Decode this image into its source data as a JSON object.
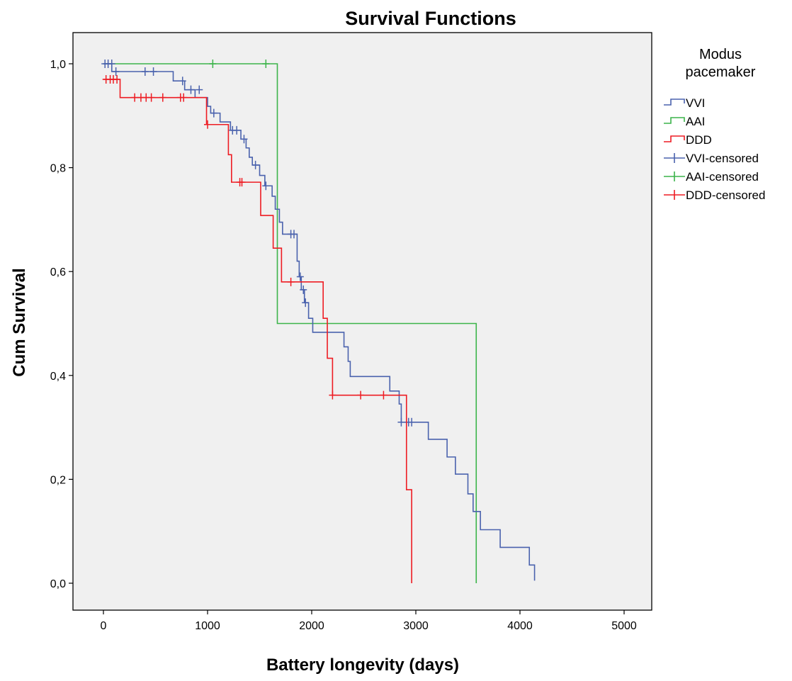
{
  "chart_data": {
    "type": "line",
    "subtype": "kaplan-meier-step",
    "title": "Survival Functions",
    "xlabel": "Battery longevity (days)",
    "ylabel": "Cum Survival",
    "xlim": [
      0,
      5000
    ],
    "ylim": [
      0,
      1
    ],
    "x_ticks": [
      "0",
      "1000",
      "2000",
      "3000",
      "4000",
      "5000"
    ],
    "y_ticks": [
      "0,0",
      "0,2",
      "0,4",
      "0,6",
      "0,8",
      "1,0"
    ],
    "x_tick_values": [
      0,
      1000,
      2000,
      3000,
      4000,
      5000
    ],
    "y_tick_values": [
      0,
      0.2,
      0.4,
      0.6,
      0.8,
      1.0
    ],
    "grid": false,
    "plot_background": "#f0f0f0",
    "legend": {
      "title_lines": [
        "Modus",
        "pacemaker"
      ],
      "position": "right",
      "entries": [
        {
          "label": "VVI",
          "color": "#4a62ad",
          "kind": "step"
        },
        {
          "label": "AAI",
          "color": "#3cb44a",
          "kind": "step"
        },
        {
          "label": "DDD",
          "color": "#ee1c23",
          "kind": "step"
        },
        {
          "label": "VVI-censored",
          "color": "#4a62ad",
          "kind": "cross"
        },
        {
          "label": "AAI-censored",
          "color": "#3cb44a",
          "kind": "cross"
        },
        {
          "label": "DDD-censored",
          "color": "#ee1c23",
          "kind": "cross"
        }
      ]
    },
    "series": [
      {
        "name": "VVI",
        "color": "#4a62ad",
        "steps": [
          [
            0,
            1.0
          ],
          [
            80,
            0.985
          ],
          [
            670,
            0.967
          ],
          [
            780,
            0.95
          ],
          [
            880,
            0.935
          ],
          [
            1000,
            0.918
          ],
          [
            1030,
            0.905
          ],
          [
            1120,
            0.888
          ],
          [
            1220,
            0.872
          ],
          [
            1320,
            0.855
          ],
          [
            1370,
            0.838
          ],
          [
            1400,
            0.82
          ],
          [
            1430,
            0.805
          ],
          [
            1500,
            0.785
          ],
          [
            1550,
            0.765
          ],
          [
            1620,
            0.745
          ],
          [
            1650,
            0.72
          ],
          [
            1690,
            0.695
          ],
          [
            1720,
            0.672
          ],
          [
            1860,
            0.62
          ],
          [
            1880,
            0.59
          ],
          [
            1900,
            0.565
          ],
          [
            1930,
            0.54
          ],
          [
            1970,
            0.51
          ],
          [
            2010,
            0.483
          ],
          [
            2310,
            0.455
          ],
          [
            2350,
            0.427
          ],
          [
            2370,
            0.398
          ],
          [
            2750,
            0.37
          ],
          [
            2840,
            0.345
          ],
          [
            2860,
            0.31
          ],
          [
            3120,
            0.277
          ],
          [
            3300,
            0.243
          ],
          [
            3380,
            0.21
          ],
          [
            3500,
            0.172
          ],
          [
            3550,
            0.138
          ],
          [
            3620,
            0.103
          ],
          [
            3810,
            0.069
          ],
          [
            4090,
            0.035
          ],
          [
            4140,
            0.005
          ]
        ],
        "censored": [
          [
            15,
            1.0
          ],
          [
            45,
            1.0
          ],
          [
            80,
            1.0
          ],
          [
            120,
            0.985
          ],
          [
            400,
            0.985
          ],
          [
            480,
            0.985
          ],
          [
            760,
            0.967
          ],
          [
            840,
            0.95
          ],
          [
            920,
            0.95
          ],
          [
            1060,
            0.905
          ],
          [
            1240,
            0.872
          ],
          [
            1280,
            0.872
          ],
          [
            1350,
            0.855
          ],
          [
            1460,
            0.805
          ],
          [
            1560,
            0.765
          ],
          [
            1800,
            0.672
          ],
          [
            1830,
            0.672
          ],
          [
            1890,
            0.59
          ],
          [
            1920,
            0.565
          ],
          [
            1940,
            0.54
          ],
          [
            2860,
            0.31
          ],
          [
            2930,
            0.31
          ],
          [
            2960,
            0.31
          ]
        ]
      },
      {
        "name": "AAI",
        "color": "#3cb44a",
        "steps": [
          [
            0,
            1.0
          ],
          [
            1670,
            1.0
          ],
          [
            1670,
            0.5
          ],
          [
            3580,
            0.5
          ],
          [
            3580,
            0.0
          ]
        ],
        "censored": [
          [
            1050,
            1.0
          ],
          [
            1560,
            1.0
          ]
        ]
      },
      {
        "name": "DDD",
        "color": "#ee1c23",
        "steps": [
          [
            0,
            0.97
          ],
          [
            160,
            0.935
          ],
          [
            990,
            0.883
          ],
          [
            1200,
            0.825
          ],
          [
            1230,
            0.772
          ],
          [
            1510,
            0.708
          ],
          [
            1630,
            0.645
          ],
          [
            1710,
            0.58
          ],
          [
            2110,
            0.51
          ],
          [
            2150,
            0.433
          ],
          [
            2200,
            0.362
          ],
          [
            2910,
            0.18
          ],
          [
            2960,
            0.0
          ]
        ],
        "censored": [
          [
            25,
            0.97
          ],
          [
            65,
            0.97
          ],
          [
            95,
            0.97
          ],
          [
            130,
            0.97
          ],
          [
            300,
            0.935
          ],
          [
            360,
            0.935
          ],
          [
            410,
            0.935
          ],
          [
            460,
            0.935
          ],
          [
            570,
            0.935
          ],
          [
            740,
            0.935
          ],
          [
            770,
            0.935
          ],
          [
            1000,
            0.883
          ],
          [
            1310,
            0.772
          ],
          [
            1330,
            0.772
          ],
          [
            1800,
            0.58
          ],
          [
            2200,
            0.362
          ],
          [
            2470,
            0.362
          ],
          [
            2690,
            0.362
          ]
        ]
      }
    ]
  }
}
